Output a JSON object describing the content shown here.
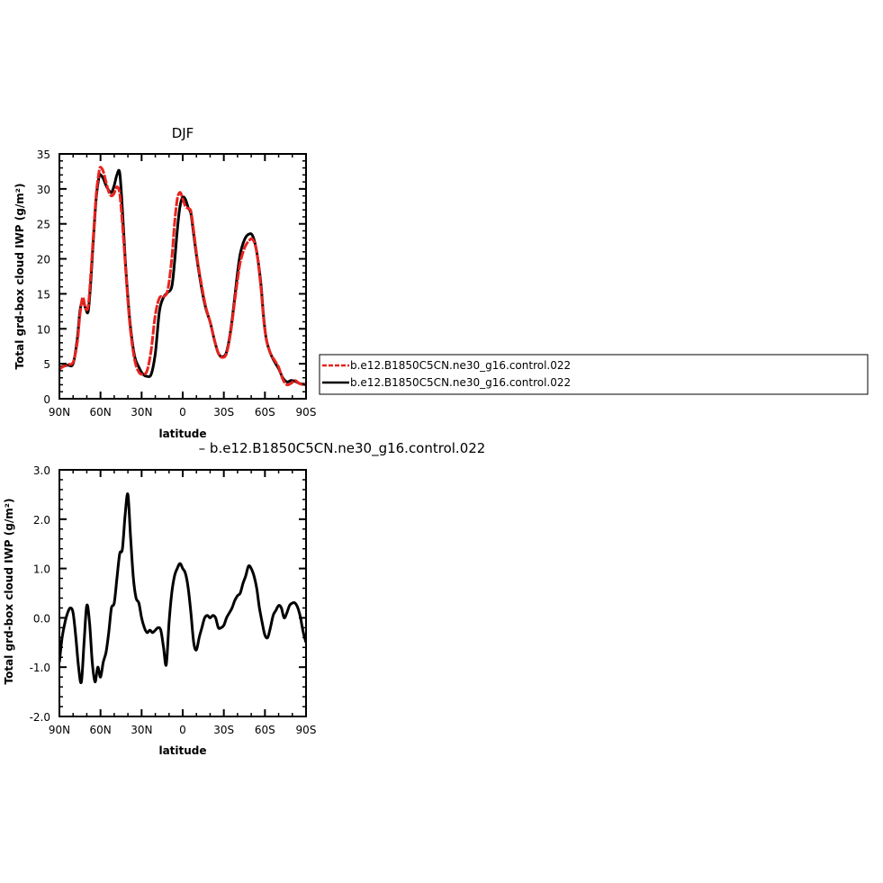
{
  "chart_data": [
    {
      "type": "line",
      "title": "DJF",
      "xlabel": "latitude",
      "ylabel": "Total grd-box cloud IWP (g/m²)",
      "xlim": [
        90,
        -90
      ],
      "ylim": [
        0,
        35
      ],
      "x_ticks": [
        90,
        60,
        30,
        0,
        -30,
        -60,
        -90
      ],
      "x_tick_labels": [
        "90N",
        "60N",
        "30N",
        "0",
        "30S",
        "60S",
        "90S"
      ],
      "y_ticks": [
        0,
        5,
        10,
        15,
        20,
        25,
        30,
        35
      ],
      "y_tick_labels": [
        "0",
        "5",
        "10",
        "15",
        "20",
        "25",
        "30",
        "35"
      ],
      "legend": {
        "placement": "right",
        "entries": [
          "b.e12.B1850C5CN.ne30_g16.control.022",
          "b.e12.B1850C5CN.ne30_g16.control.022"
        ]
      },
      "x": [
        90,
        88,
        84,
        80,
        77,
        75,
        73,
        71,
        69,
        67,
        65,
        63,
        61,
        60,
        58,
        56,
        54,
        52,
        50,
        48,
        46,
        44,
        42,
        40,
        38,
        35,
        32,
        29,
        26,
        23,
        20,
        17,
        14,
        11,
        8,
        6,
        4,
        2,
        0,
        -2,
        -4,
        -6,
        -8,
        -11,
        -14,
        -17,
        -20,
        -23,
        -26,
        -29,
        -32,
        -35,
        -38,
        -40,
        -42,
        -45,
        -48,
        -51,
        -54,
        -57,
        -59,
        -61,
        -64,
        -67,
        -70,
        -73,
        -76,
        -79,
        -82,
        -85,
        -88,
        -90
      ],
      "series": [
        {
          "name": "b.e12.B1850C5CN.ne30_g16.control.022",
          "color": "#e8231e",
          "dash": "dashed",
          "values": [
            4.2,
            4.5,
            4.9,
            5.2,
            8.0,
            12.0,
            14.5,
            13.0,
            13.2,
            18.0,
            24.0,
            29.5,
            32.5,
            33.1,
            32.5,
            31.0,
            29.6,
            29.0,
            29.4,
            30.3,
            29.3,
            25.0,
            19.5,
            14.0,
            9.5,
            5.5,
            3.8,
            3.5,
            4.0,
            7.0,
            12.0,
            14.4,
            14.6,
            15.5,
            20.0,
            25.0,
            28.5,
            29.5,
            28.6,
            27.5,
            27.2,
            26.8,
            24.0,
            19.5,
            16.0,
            13.0,
            11.0,
            8.5,
            6.5,
            5.9,
            6.5,
            9.5,
            14.0,
            17.0,
            19.5,
            21.5,
            22.5,
            22.8,
            21.0,
            16.0,
            11.5,
            8.5,
            6.5,
            5.5,
            4.5,
            2.8,
            2.0,
            2.2,
            2.6,
            2.2,
            2.0,
            2.1
          ]
        },
        {
          "name": "b.e12.B1850C5CN.ne30_g16.control.022",
          "color": "#000000",
          "dash": "solid",
          "values": [
            4.4,
            4.6,
            4.8,
            5.0,
            8.5,
            12.5,
            14.0,
            13.0,
            12.5,
            17.0,
            23.5,
            29.0,
            31.8,
            32.0,
            31.5,
            30.5,
            29.8,
            29.5,
            30.5,
            32.0,
            32.3,
            27.0,
            20.0,
            14.5,
            10.0,
            6.0,
            4.5,
            3.5,
            3.2,
            3.5,
            6.5,
            12.5,
            14.5,
            15.2,
            16.0,
            19.5,
            24.0,
            27.5,
            28.8,
            28.5,
            27.3,
            26.5,
            23.5,
            19.2,
            15.6,
            12.8,
            11.0,
            8.5,
            6.5,
            6.0,
            6.7,
            9.8,
            14.5,
            18.0,
            20.7,
            22.7,
            23.5,
            23.3,
            21.0,
            16.5,
            11.8,
            8.5,
            6.5,
            5.3,
            4.3,
            3.0,
            2.4,
            2.6,
            2.5,
            2.2,
            2.1,
            2.1
          ]
        }
      ]
    },
    {
      "type": "line",
      "title": "– b.e12.B1850C5CN.ne30_g16.control.022",
      "xlabel": "latitude",
      "ylabel": "Total grd-box cloud IWP (g/m²)",
      "xlim": [
        90,
        -90
      ],
      "ylim": [
        -2.0,
        3.0
      ],
      "x_ticks": [
        90,
        60,
        30,
        0,
        -30,
        -60,
        -90
      ],
      "x_tick_labels": [
        "90N",
        "60N",
        "30N",
        "0",
        "30S",
        "60S",
        "90S"
      ],
      "y_ticks": [
        -2.0,
        -1.0,
        0.0,
        1.0,
        2.0,
        3.0
      ],
      "y_tick_labels": [
        "-2.0",
        "-1.0",
        "0.0",
        "1.0",
        "2.0",
        "3.0"
      ],
      "x": [
        90,
        88,
        86,
        84,
        82,
        80,
        78,
        76,
        74,
        72,
        70,
        68,
        66,
        64,
        62,
        60,
        58,
        56,
        54,
        52,
        50,
        48,
        46,
        44,
        42,
        40,
        38,
        36,
        34,
        32,
        30,
        28,
        26,
        24,
        22,
        20,
        18,
        16,
        14,
        12,
        10,
        8,
        6,
        4,
        2,
        0,
        -2,
        -4,
        -6,
        -8,
        -10,
        -12,
        -14,
        -16,
        -18,
        -20,
        -22,
        -24,
        -26,
        -28,
        -30,
        -32,
        -34,
        -36,
        -38,
        -40,
        -42,
        -44,
        -46,
        -48,
        -50,
        -52,
        -54,
        -56,
        -58,
        -60,
        -62,
        -64,
        -66,
        -68,
        -70,
        -72,
        -74,
        -76,
        -78,
        -80,
        -82,
        -84,
        -86,
        -88,
        -90
      ],
      "series": [
        {
          "name": "",
          "color": "#000000",
          "dash": "solid",
          "values": [
            -0.9,
            -0.4,
            -0.1,
            0.1,
            0.2,
            0.1,
            -0.4,
            -1.0,
            -1.3,
            -0.5,
            0.25,
            -0.1,
            -0.9,
            -1.3,
            -1.0,
            -1.2,
            -0.9,
            -0.7,
            -0.3,
            0.2,
            0.3,
            0.8,
            1.3,
            1.4,
            2.1,
            2.5,
            1.6,
            0.8,
            0.4,
            0.3,
            0.0,
            -0.2,
            -0.3,
            -0.25,
            -0.3,
            -0.25,
            -0.2,
            -0.25,
            -0.6,
            -0.95,
            -0.1,
            0.5,
            0.85,
            1.0,
            1.1,
            1.0,
            0.9,
            0.6,
            0.1,
            -0.5,
            -0.65,
            -0.4,
            -0.2,
            0.0,
            0.05,
            0.0,
            0.05,
            0.0,
            -0.2,
            -0.2,
            -0.15,
            0.0,
            0.1,
            0.2,
            0.35,
            0.45,
            0.5,
            0.7,
            0.85,
            1.05,
            1.0,
            0.85,
            0.6,
            0.2,
            -0.1,
            -0.35,
            -0.4,
            -0.2,
            0.05,
            0.15,
            0.25,
            0.2,
            0.0,
            0.1,
            0.25,
            0.3,
            0.3,
            0.2,
            0.0,
            -0.3,
            -0.5
          ]
        }
      ]
    }
  ]
}
